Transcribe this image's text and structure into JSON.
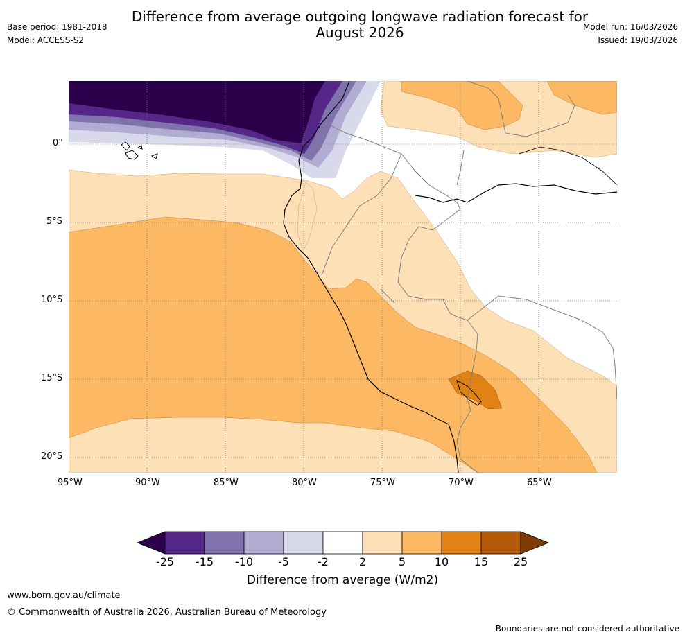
{
  "header": {
    "title_line1": "Difference from average outgoing longwave radiation forecast for",
    "title_line2": "August 2026",
    "base_period": "Base period: 1981-2018",
    "model": "Model: ACCESS-S2",
    "model_run": "Model run: 16/03/2026",
    "issued": "Issued: 19/03/2026"
  },
  "map": {
    "lon_labels": [
      "95°W",
      "90°W",
      "85°W",
      "80°W",
      "75°W",
      "70°W",
      "65°W"
    ],
    "lat_labels": [
      "0°",
      "5°S",
      "10°S",
      "15°S",
      "20°S"
    ]
  },
  "colorbar": {
    "ticks": [
      "-25",
      "-15",
      "-10",
      "-5",
      "-2",
      "2",
      "5",
      "10",
      "15",
      "25"
    ],
    "colors": [
      "#2d004b",
      "#542788",
      "#8073ac",
      "#b2abd2",
      "#d8daeb",
      "#ffffff",
      "#fee0b6",
      "#fdb863",
      "#e08214",
      "#b35806",
      "#7f3b08"
    ],
    "label": "Difference from average (W/m2)"
  },
  "footer": {
    "url": "www.bom.gov.au/climate",
    "copyright": "© Commonwealth of Australia 2026, Australian Bureau of Meteorology",
    "disclaimer": "Boundaries are not considered authoritative"
  }
}
